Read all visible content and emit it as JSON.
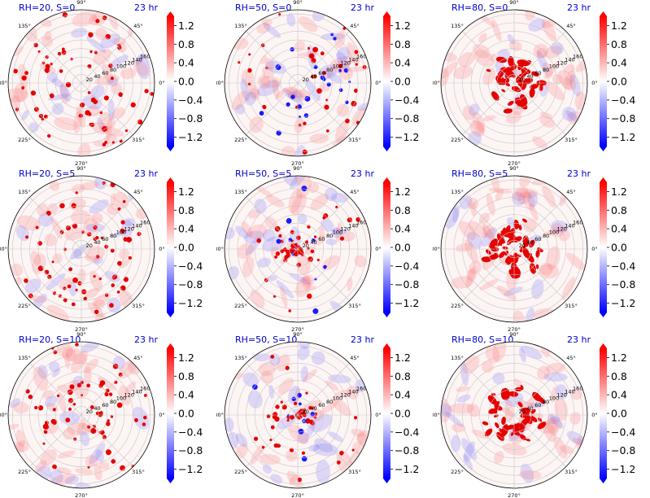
{
  "chart_data": [
    {
      "type": "heatmap",
      "title": "RH=20, S=0",
      "time_label": "23 hr",
      "rh": 20,
      "s": 0
    },
    {
      "type": "heatmap",
      "title": "RH=50, S=0",
      "time_label": "23 hr",
      "rh": 50,
      "s": 0
    },
    {
      "type": "heatmap",
      "title": "RH=80, S=0",
      "time_label": "23 hr",
      "rh": 80,
      "s": 0
    },
    {
      "type": "heatmap",
      "title": "RH=20, S=5",
      "time_label": "23 hr",
      "rh": 20,
      "s": 5
    },
    {
      "type": "heatmap",
      "title": "RH=50, S=5",
      "time_label": "23 hr",
      "rh": 50,
      "s": 5
    },
    {
      "type": "heatmap",
      "title": "RH=80, S=5",
      "time_label": "23 hr",
      "rh": 80,
      "s": 5
    },
    {
      "type": "heatmap",
      "title": "RH=20, S=10",
      "time_label": "23 hr",
      "rh": 20,
      "s": 10
    },
    {
      "type": "heatmap",
      "title": "RH=50, S=10",
      "time_label": "23 hr",
      "rh": 50,
      "s": 10
    },
    {
      "type": "heatmap",
      "title": "RH=80, S=10",
      "time_label": "23 hr",
      "rh": 80,
      "s": 10
    }
  ],
  "polar_axes": {
    "angle_ticks": [
      "0°",
      "45°",
      "90°",
      "135°",
      "180°",
      "225°",
      "270°",
      "315°"
    ],
    "radial_ticks": [
      "20",
      "40",
      "60",
      "80",
      "100",
      "120",
      "140",
      "160"
    ],
    "radial_max": 170
  },
  "colorbar": {
    "ticks": [
      "1.2",
      "0.8",
      "0.4",
      "0.0",
      "−0.4",
      "−0.8",
      "−1.2"
    ],
    "tick_values": [
      1.2,
      0.8,
      0.4,
      0.0,
      -0.4,
      -0.8,
      -1.2
    ],
    "range": [
      -1.4,
      1.4
    ],
    "extend": "both",
    "colormap": "bwr",
    "colors": {
      "min": "#0000ff",
      "mid": "#ffffff",
      "max": "#ff0000"
    }
  },
  "colors": {
    "title": "#0000cc",
    "grid": "#c8c8c8"
  }
}
